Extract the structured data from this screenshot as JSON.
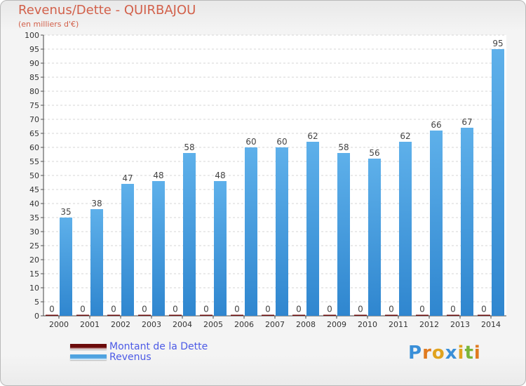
{
  "title": "Revenus/Dette - QUIRBAJOU",
  "subtitle": "(en milliers d'€)",
  "logo_text": "Proxiti",
  "colors": {
    "title": "#d2604a",
    "dette": "#6b0a0a",
    "revenus": "#4fa3e0",
    "legend_text": "#4c5ae6"
  },
  "legend": [
    {
      "label": "Montant de la Dette",
      "color": "#6b0a0a"
    },
    {
      "label": "Revenus",
      "color": "#4fa3e0"
    }
  ],
  "chart_data": {
    "type": "bar",
    "categories": [
      "2000",
      "2001",
      "2002",
      "2003",
      "2004",
      "2005",
      "2006",
      "2007",
      "2008",
      "2009",
      "2010",
      "2011",
      "2012",
      "2013",
      "2014"
    ],
    "series": [
      {
        "name": "Montant de la Dette",
        "values": [
          0,
          0,
          0,
          0,
          0,
          0,
          0,
          0,
          0,
          0,
          0,
          0,
          0,
          0,
          0
        ]
      },
      {
        "name": "Revenus",
        "values": [
          35,
          38,
          47,
          48,
          58,
          48,
          60,
          60,
          62,
          58,
          56,
          62,
          66,
          67,
          95
        ]
      }
    ],
    "yticks": [
      0,
      5,
      10,
      15,
      20,
      25,
      30,
      35,
      40,
      45,
      50,
      55,
      60,
      65,
      70,
      75,
      80,
      85,
      90,
      95,
      100
    ],
    "ylim": [
      0,
      100
    ],
    "grid": true,
    "legend_position": "bottom-left"
  }
}
